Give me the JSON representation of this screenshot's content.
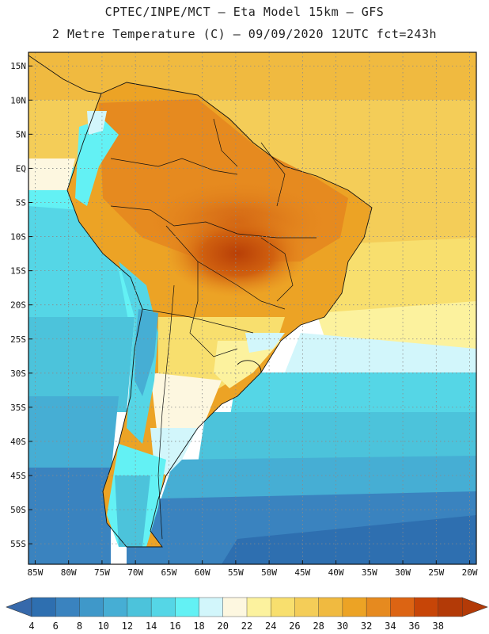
{
  "header": {
    "line1": "CPTEC/INPE/MCT –  Eta Model 15km – GFS",
    "line2": "2 Metre Temperature (C) – 09/09/2020 12UTC fct=243h"
  },
  "axes": {
    "lat_labels": [
      "15N",
      "10N",
      "5N",
      "EQ",
      "5S",
      "10S",
      "15S",
      "20S",
      "25S",
      "30S",
      "35S",
      "40S",
      "45S",
      "50S",
      "55S"
    ],
    "lat_values": [
      15,
      10,
      5,
      0,
      -5,
      -10,
      -15,
      -20,
      -25,
      -30,
      -35,
      -40,
      -45,
      -50,
      -55
    ],
    "lon_labels": [
      "85W",
      "80W",
      "75W",
      "70W",
      "65W",
      "60W",
      "55W",
      "50W",
      "45W",
      "40W",
      "35W",
      "30W",
      "25W",
      "20W"
    ],
    "lon_values": [
      -85,
      -80,
      -75,
      -70,
      -65,
      -60,
      -55,
      -50,
      -45,
      -40,
      -35,
      -30,
      -25,
      -20
    ],
    "lat_range": [
      -58,
      17
    ],
    "lon_range": [
      -86,
      -19
    ]
  },
  "colorbar": {
    "labels": [
      "4",
      "6",
      "8",
      "10",
      "12",
      "14",
      "16",
      "18",
      "20",
      "22",
      "24",
      "26",
      "28",
      "30",
      "32",
      "34",
      "36",
      "38"
    ],
    "colors": [
      "#2e6fb0",
      "#3a83bf",
      "#3f98c9",
      "#46aed4",
      "#4cc3db",
      "#55d6e6",
      "#63f1f4",
      "#d2f6fb",
      "#fdf7e0",
      "#fcf29e",
      "#f8df6e",
      "#f4cd58",
      "#f0ba40",
      "#eca325",
      "#e68a1f",
      "#dc6413",
      "#c74507",
      "#b33a07"
    ],
    "low_color": "#3669ab",
    "high_color": "#b33a07"
  }
}
